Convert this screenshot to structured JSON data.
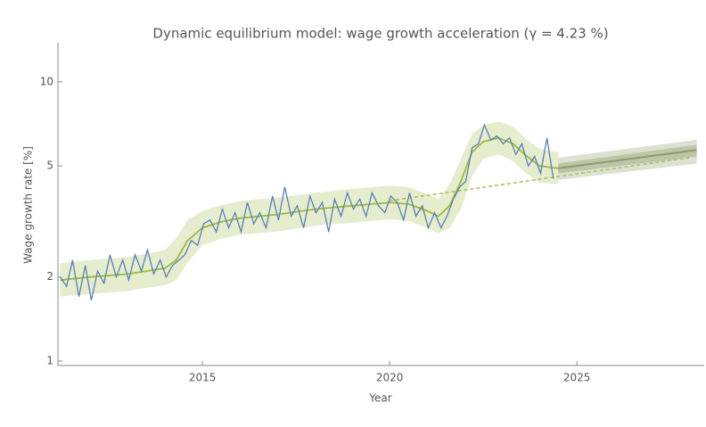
{
  "chart_data": {
    "type": "line",
    "title": "Dynamic equilibrium model: wage growth acceleration (γ = 4.23 %)",
    "xlabel": "Year",
    "ylabel": "Wage growth rate [%]",
    "xlim": [
      2011.14,
      2028.4
    ],
    "ylim": [
      0.964,
      13.8
    ],
    "log_y": true,
    "xticks": [
      2015,
      2020,
      2025
    ],
    "yticks": [
      1,
      2,
      5,
      10
    ],
    "series": [
      {
        "color": "#5b7fb6",
        "x": [
          2011.2,
          2011.37,
          2011.53,
          2011.7,
          2011.87,
          2012.03,
          2012.2,
          2012.37,
          2012.53,
          2012.7,
          2012.87,
          2013.03,
          2013.2,
          2013.37,
          2013.53,
          2013.7,
          2013.87,
          2014.03,
          2014.2,
          2014.37,
          2014.53,
          2014.7,
          2014.87,
          2015.03,
          2015.2,
          2015.37,
          2015.53,
          2015.7,
          2015.87,
          2016.03,
          2016.2,
          2016.37,
          2016.53,
          2016.7,
          2016.87,
          2017.03,
          2017.2,
          2017.37,
          2017.53,
          2017.7,
          2017.87,
          2018.03,
          2018.2,
          2018.37,
          2018.53,
          2018.7,
          2018.87,
          2019.03,
          2019.2,
          2019.37,
          2019.53,
          2019.7,
          2019.87,
          2020.03,
          2020.2,
          2020.37,
          2020.53,
          2020.7,
          2020.87,
          2021.03,
          2021.2,
          2021.37,
          2021.53,
          2021.7,
          2021.87,
          2022.03,
          2022.2,
          2022.37,
          2022.53,
          2022.7,
          2022.87,
          2023.03,
          2023.2,
          2023.37,
          2023.53,
          2023.7,
          2023.87,
          2024.03,
          2024.2,
          2024.37
        ],
        "values": [
          2.0,
          1.85,
          2.3,
          1.7,
          2.2,
          1.65,
          2.1,
          1.9,
          2.4,
          2.0,
          2.3,
          1.95,
          2.4,
          2.1,
          2.5,
          2.05,
          2.3,
          2.0,
          2.2,
          2.3,
          2.4,
          2.7,
          2.6,
          3.1,
          3.2,
          2.9,
          3.5,
          3.0,
          3.4,
          2.9,
          3.7,
          3.1,
          3.4,
          3.0,
          3.9,
          3.2,
          4.2,
          3.3,
          3.6,
          3.0,
          3.9,
          3.4,
          3.7,
          2.9,
          3.8,
          3.3,
          4.0,
          3.5,
          3.8,
          3.3,
          4.0,
          3.6,
          3.4,
          3.9,
          3.7,
          3.2,
          4.0,
          3.3,
          3.6,
          3.0,
          3.4,
          3.0,
          3.3,
          3.8,
          4.2,
          4.4,
          5.8,
          6.0,
          7.0,
          6.2,
          6.4,
          6.0,
          6.3,
          5.5,
          6.0,
          5.0,
          5.4,
          4.7,
          6.3,
          4.5
        ]
      }
    ],
    "model": {
      "color": "#9bbb3c",
      "band_color": "#dfe9c2",
      "x": [
        2011.2,
        2012,
        2013,
        2013.5,
        2014,
        2014.3,
        2014.6,
        2015,
        2015.5,
        2016,
        2017,
        2018,
        2019,
        2020,
        2020.5,
        2021,
        2021.3,
        2021.6,
        2021.9,
        2022.2,
        2022.5,
        2022.9,
        2023.3,
        2023.6,
        2024,
        2024.5
      ],
      "values": [
        1.95,
        2.0,
        2.05,
        2.1,
        2.15,
        2.3,
        2.7,
        3.0,
        3.15,
        3.25,
        3.35,
        3.5,
        3.6,
        3.7,
        3.65,
        3.45,
        3.3,
        3.6,
        4.4,
        5.6,
        6.1,
        6.3,
        6.0,
        5.5,
        5.0,
        4.9
      ],
      "lower": [
        1.7,
        1.74,
        1.78,
        1.83,
        1.87,
        1.95,
        2.25,
        2.6,
        2.74,
        2.83,
        2.91,
        3.05,
        3.13,
        3.22,
        3.18,
        3.0,
        2.87,
        3.0,
        3.5,
        4.6,
        5.3,
        5.5,
        5.2,
        4.75,
        4.35,
        4.3
      ],
      "upper": [
        2.24,
        2.3,
        2.36,
        2.42,
        2.5,
        2.75,
        3.2,
        3.45,
        3.62,
        3.74,
        3.85,
        4.0,
        4.14,
        4.25,
        4.2,
        3.97,
        3.8,
        4.3,
        5.3,
        6.5,
        7.0,
        7.2,
        6.9,
        6.3,
        5.75,
        5.6
      ]
    },
    "trend": {
      "color": "#a8c45a",
      "dashed": true,
      "x": [
        2020,
        2028
      ],
      "values": [
        3.75,
        5.35
      ]
    },
    "forecast": {
      "color": "#8c9c68",
      "x": [
        2024.5,
        2028.2
      ],
      "values": [
        4.9,
        5.7
      ],
      "lower": [
        4.45,
        5.1
      ],
      "upper": [
        5.35,
        6.2
      ],
      "inner_lower": [
        4.7,
        5.4
      ],
      "inner_upper": [
        5.1,
        5.95
      ]
    }
  }
}
